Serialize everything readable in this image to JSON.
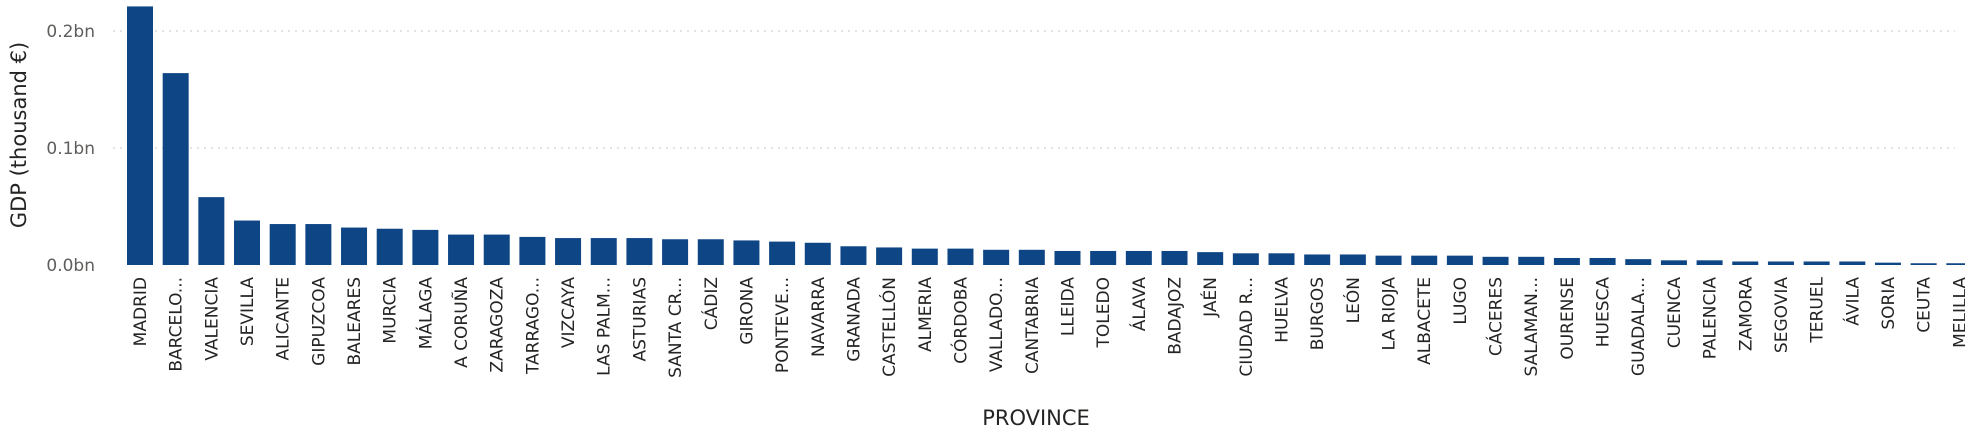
{
  "chart_data": {
    "type": "bar",
    "xlabel": "PROVINCE",
    "ylabel": "GDP (thousand €)",
    "ylim": [
      0,
      0.22
    ],
    "yticks": [
      0,
      0.1,
      0.2
    ],
    "ytick_labels": [
      "0.0bn",
      "0.1bn",
      "0.2bn"
    ],
    "grid": true,
    "bar_color": "#0d4585",
    "categories": [
      "MADRID",
      "BARCELO...",
      "VALENCIA",
      "SEVILLA",
      "ALICANTE",
      "GIPUZCOA",
      "BALEARES",
      "MURCIA",
      "MÁLAGA",
      "A CORUÑA",
      "ZARAGOZA",
      "TARRAGO...",
      "VIZCAYA",
      "LAS PALM...",
      "ASTURIAS",
      "SANTA CR...",
      "CÁDIZ",
      "GIRONA",
      "PONTEVE...",
      "NAVARRA",
      "GRANADA",
      "CASTELLÓN",
      "ALMERIA",
      "CÓRDOBA",
      "VALLADO...",
      "CANTABRIA",
      "LLEIDA",
      "TOLEDO",
      "ÁLAVA",
      "BADAJOZ",
      "JAÉN",
      "CIUDAD R...",
      "HUELVA",
      "BURGOS",
      "LEÓN",
      "LA RIOJA",
      "ALBACETE",
      "LUGO",
      "CÁCERES",
      "SALAMAN...",
      "OURENSE",
      "HUESCA",
      "GUADALA...",
      "CUENCA",
      "PALENCIA",
      "ZAMORA",
      "SEGOVIA",
      "TERUEL",
      "ÁVILA",
      "SORIA",
      "CEUTA",
      "MELILLA"
    ],
    "values": [
      0.221,
      0.164,
      0.058,
      0.038,
      0.035,
      0.035,
      0.032,
      0.031,
      0.03,
      0.026,
      0.026,
      0.024,
      0.023,
      0.023,
      0.023,
      0.022,
      0.022,
      0.021,
      0.02,
      0.019,
      0.016,
      0.015,
      0.014,
      0.014,
      0.013,
      0.013,
      0.012,
      0.012,
      0.012,
      0.012,
      0.011,
      0.01,
      0.01,
      0.009,
      0.009,
      0.008,
      0.008,
      0.008,
      0.007,
      0.007,
      0.006,
      0.006,
      0.005,
      0.004,
      0.004,
      0.003,
      0.003,
      0.003,
      0.003,
      0.002,
      0.0015,
      0.0015
    ]
  }
}
